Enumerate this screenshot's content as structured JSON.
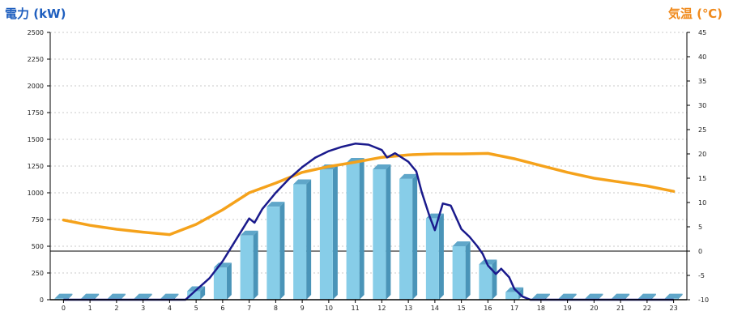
{
  "chart_data": {
    "type": "bar",
    "left_axis_title": "電力 (kW)",
    "right_axis_title": "気温 (℃)",
    "x_ticks": [
      "0",
      "1",
      "2",
      "3",
      "4",
      "5",
      "6",
      "7",
      "8",
      "9",
      "10",
      "11",
      "12",
      "13",
      "14",
      "15",
      "16",
      "17",
      "18",
      "19",
      "20",
      "21",
      "22",
      "23"
    ],
    "y_left": {
      "ticks": [
        "0",
        "250",
        "500",
        "750",
        "1000",
        "1250",
        "1500",
        "1750",
        "2000",
        "2250",
        "2500"
      ],
      "range": [
        0,
        2500
      ]
    },
    "y_right": {
      "ticks": [
        "-10",
        "-5",
        "0",
        "5",
        "10",
        "15",
        "20",
        "25",
        "30",
        "35",
        "40",
        "45"
      ],
      "range": [
        -10,
        45
      ]
    },
    "grid": true,
    "reference_line": {
      "axis": "right",
      "value": 0
    },
    "colors": {
      "bar_front": "#87cde8",
      "bar_side": "#4a94b8",
      "bar_top": "#5fa6c9",
      "power_line": "#1a1a8c",
      "temp_line": "#f5a21b",
      "left_title": "#1f5fbf",
      "right_title": "#f08a1c"
    },
    "series": [
      {
        "type": "bar",
        "axis": "left",
        "values": [
          10,
          10,
          10,
          10,
          10,
          80,
          300,
          600,
          870,
          1080,
          1220,
          1280,
          1220,
          1130,
          760,
          500,
          330,
          70,
          10,
          10,
          10,
          10,
          10,
          10
        ]
      },
      {
        "type": "line",
        "axis": "right",
        "x": [
          0,
          1,
          2,
          3,
          4,
          5,
          6,
          7,
          8,
          9,
          10,
          11,
          12,
          13,
          14,
          15,
          16,
          17,
          18,
          19,
          20,
          21,
          22,
          23
        ],
        "values": [
          6.4,
          5.3,
          4.5,
          3.9,
          3.4,
          5.5,
          8.5,
          12,
          14,
          16.2,
          17.4,
          18.3,
          19.3,
          19.8,
          20,
          20,
          20.1,
          19,
          17.6,
          16.2,
          15,
          14.2,
          13.4,
          12.3
        ]
      },
      {
        "type": "line",
        "axis": "left",
        "x": [
          0,
          1,
          2,
          3,
          4,
          4.6,
          5,
          5.5,
          6,
          6.5,
          7,
          7.2,
          7.5,
          8,
          8.5,
          9,
          9.5,
          10,
          10.5,
          11,
          11.5,
          12,
          12.2,
          12.5,
          13,
          13.3,
          13.5,
          13.8,
          14,
          14.3,
          14.6,
          15,
          15.3,
          15.6,
          15.8,
          16,
          16.3,
          16.5,
          16.8,
          17,
          17.3,
          17.6,
          18,
          19,
          20,
          21,
          22,
          23
        ],
        "values": [
          0,
          0,
          0,
          0,
          0,
          0,
          90,
          200,
          360,
          560,
          760,
          720,
          850,
          1000,
          1130,
          1240,
          1330,
          1390,
          1430,
          1460,
          1450,
          1400,
          1330,
          1370,
          1290,
          1200,
          1010,
          780,
          650,
          900,
          880,
          660,
          590,
          500,
          430,
          320,
          240,
          290,
          210,
          100,
          30,
          0,
          0,
          0,
          0,
          0,
          0,
          0
        ]
      }
    ]
  }
}
